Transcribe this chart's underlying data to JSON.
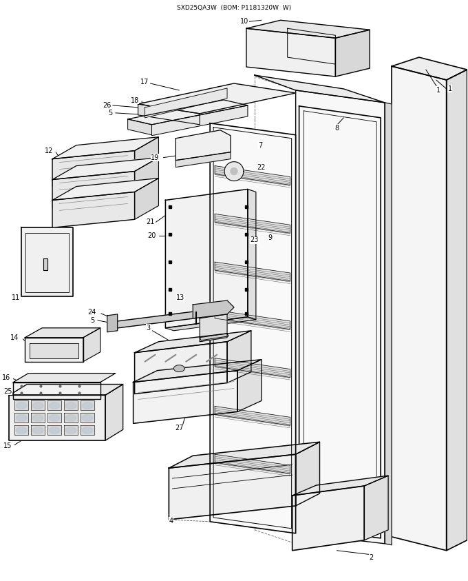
{
  "title": "SXD25QA3W  (BOM: P1181320W  W)",
  "bg_color": "#ffffff",
  "lc": "#000000",
  "fig_width": 6.8,
  "fig_height": 8.43,
  "dpi": 100
}
